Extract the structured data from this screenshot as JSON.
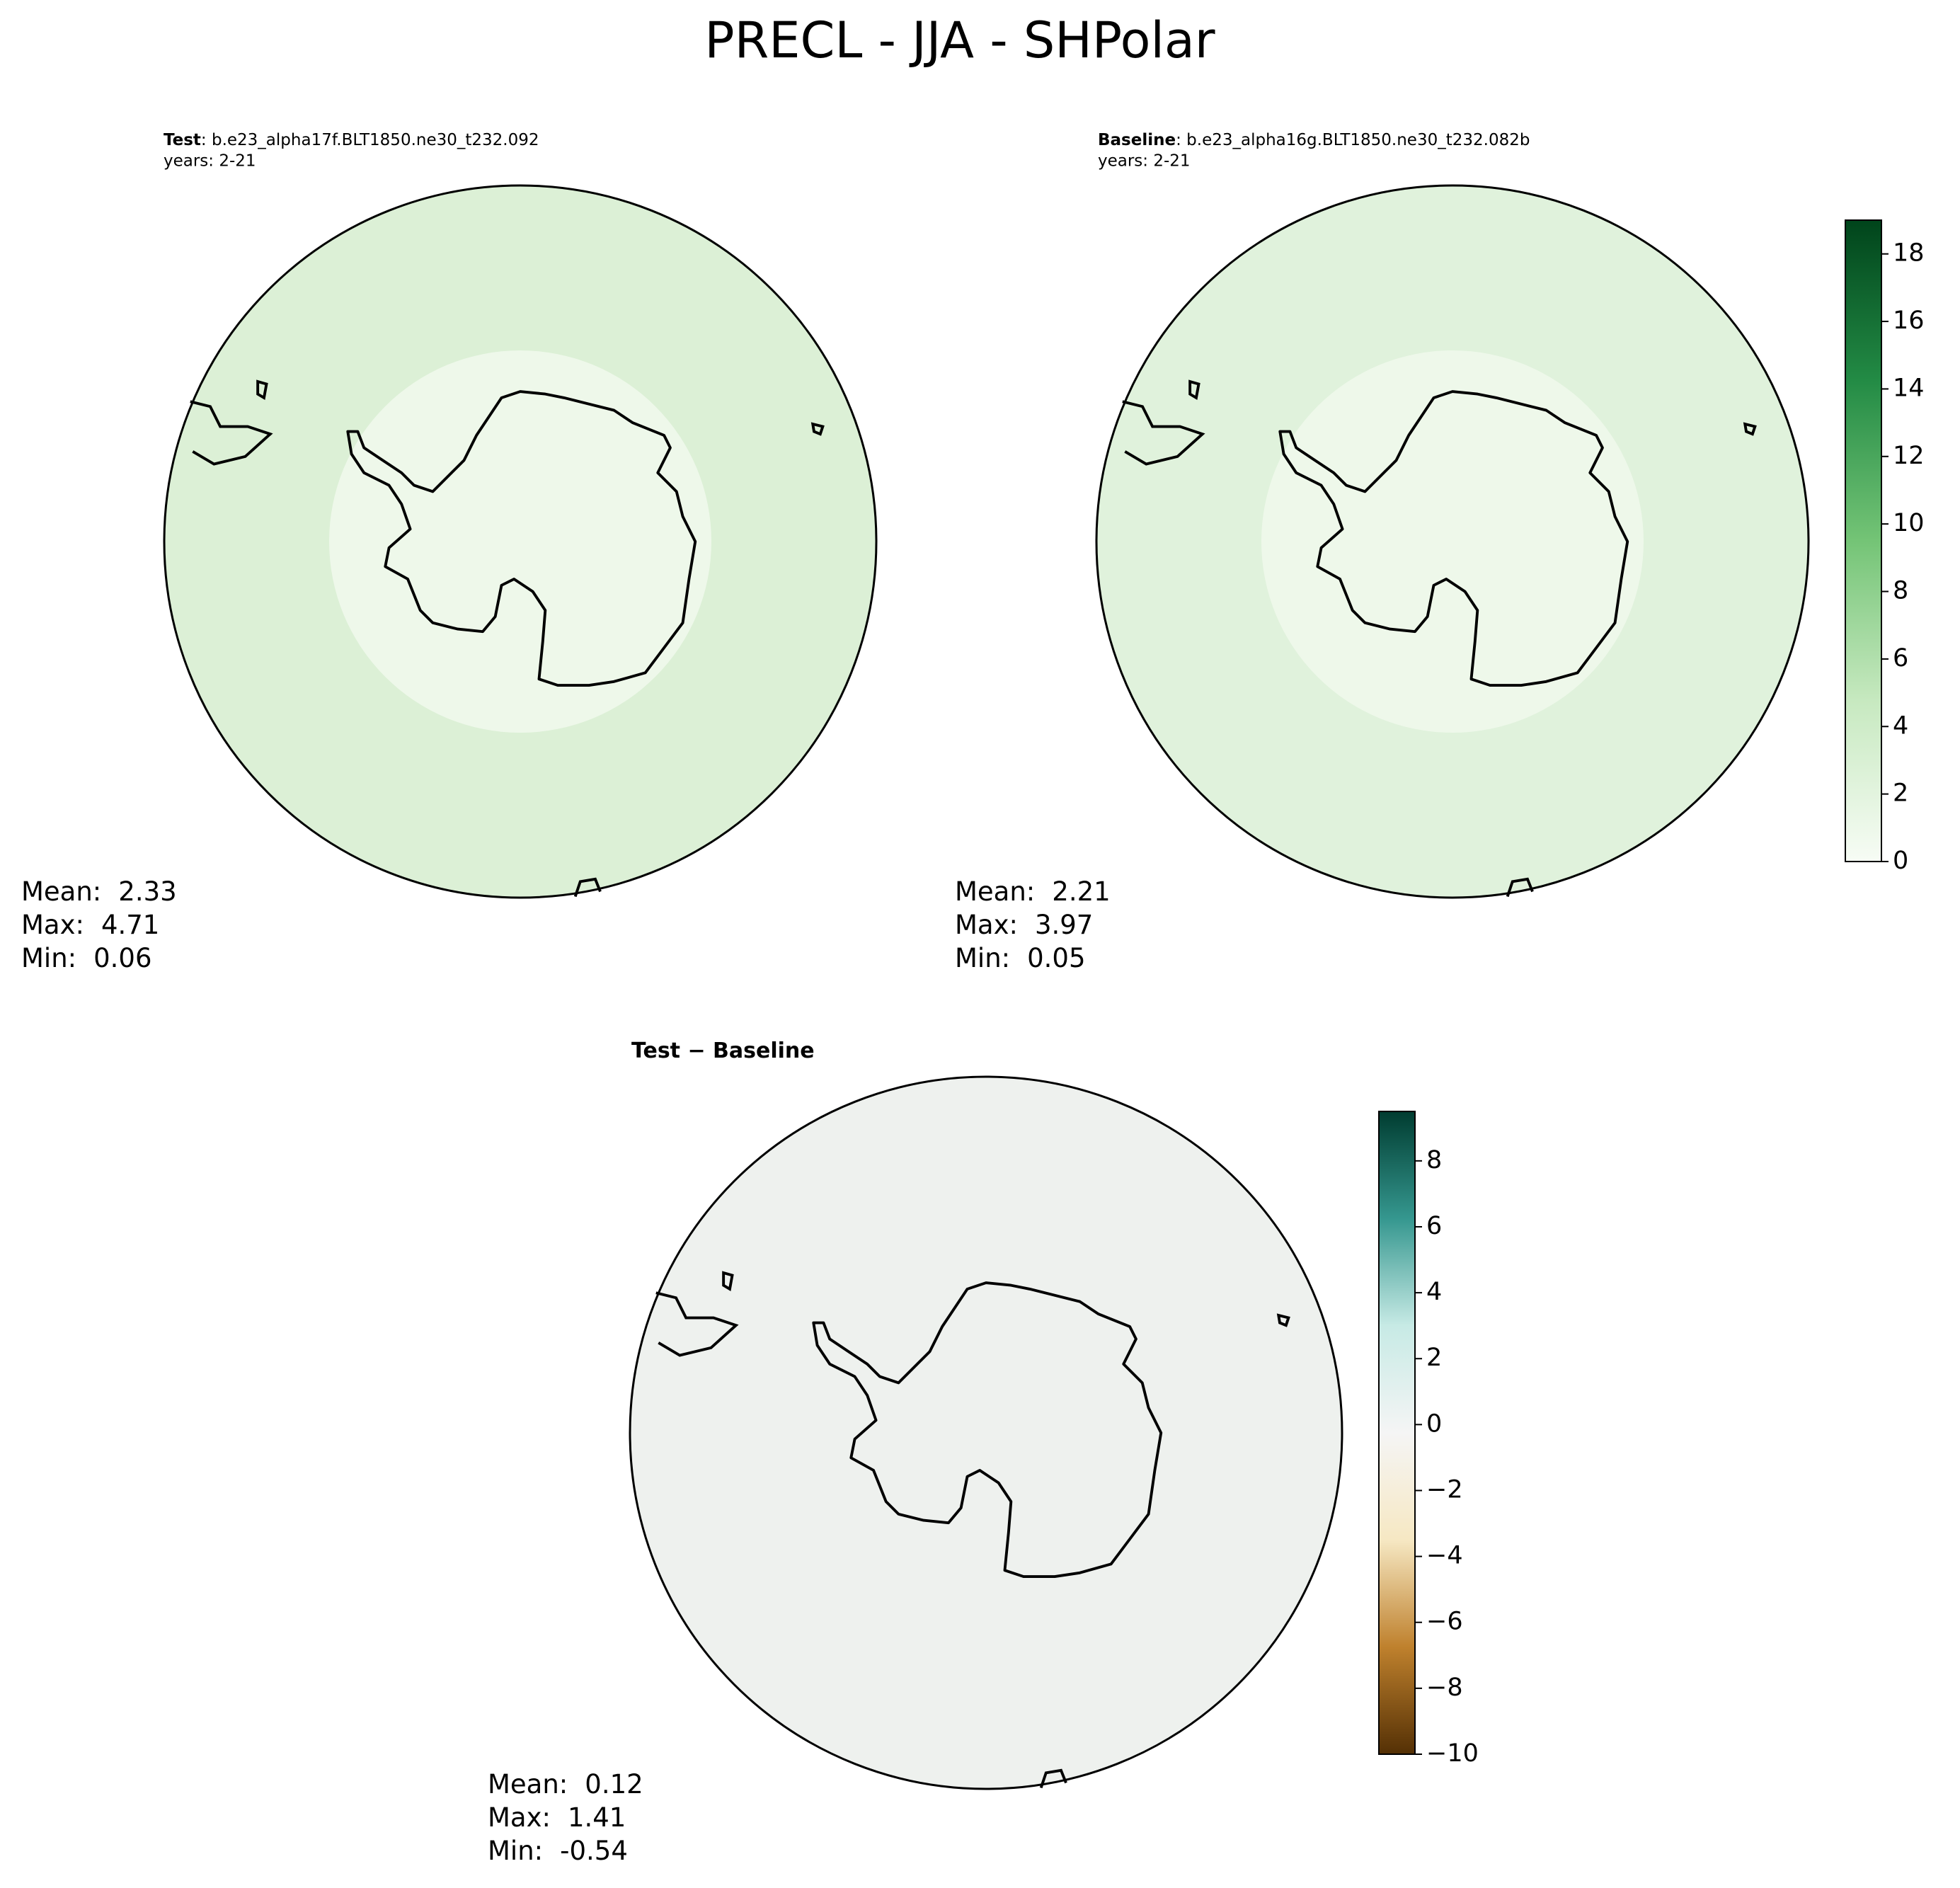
{
  "title": "PRECL - JJA - SHPolar",
  "panels": [
    {
      "label": "Test",
      "case": ": b.e23_alpha17f.BLT1850.ne30_t232.092",
      "years": "years: 2-21",
      "stats": [
        {
          "label": "Mean:",
          "value": 2.33
        },
        {
          "label": "Max:",
          "value": 4.71
        },
        {
          "label": "Min:",
          "value": 0.06
        }
      ],
      "fill": "#dcf0d6"
    },
    {
      "label": "Baseline",
      "case": ": b.e23_alpha16g.BLT1850.ne30_t232.082b",
      "years": "years: 2-21",
      "stats": [
        {
          "label": "Mean:",
          "value": 2.21
        },
        {
          "label": "Max:",
          "value": 3.97
        },
        {
          "label": "Min:",
          "value": 0.05
        }
      ],
      "fill": "#e0f2dc"
    },
    {
      "label": "Test − Baseline",
      "stats": [
        {
          "label": "Mean:",
          "value": 0.12
        },
        {
          "label": "Max:",
          "value": 1.41
        },
        {
          "label": "Min:",
          "value": -0.54
        }
      ],
      "fill": "#eef1ee"
    }
  ],
  "colorbars": [
    {
      "lim": [
        0,
        19
      ],
      "ticks": [
        0,
        2,
        4,
        6,
        8,
        10,
        12,
        14,
        16,
        18
      ],
      "colors": [
        "#f7fcf5",
        "#c7e9c0",
        "#74c476",
        "#238b45",
        "#00441b"
      ]
    },
    {
      "lim": [
        -10,
        9.5
      ],
      "ticks": [
        {
          "value": -10,
          "label": "−10"
        },
        {
          "value": -8,
          "label": "−8"
        },
        {
          "value": -6,
          "label": "−6"
        },
        {
          "value": -4,
          "label": "−4"
        },
        {
          "value": -2,
          "label": "−2"
        },
        0,
        2,
        4,
        6,
        8
      ],
      "colors": [
        "#543005",
        "#bf812d",
        "#f6e8c3",
        "#f5f5f5",
        "#c7eae5",
        "#35978f",
        "#003c30"
      ]
    }
  ]
}
